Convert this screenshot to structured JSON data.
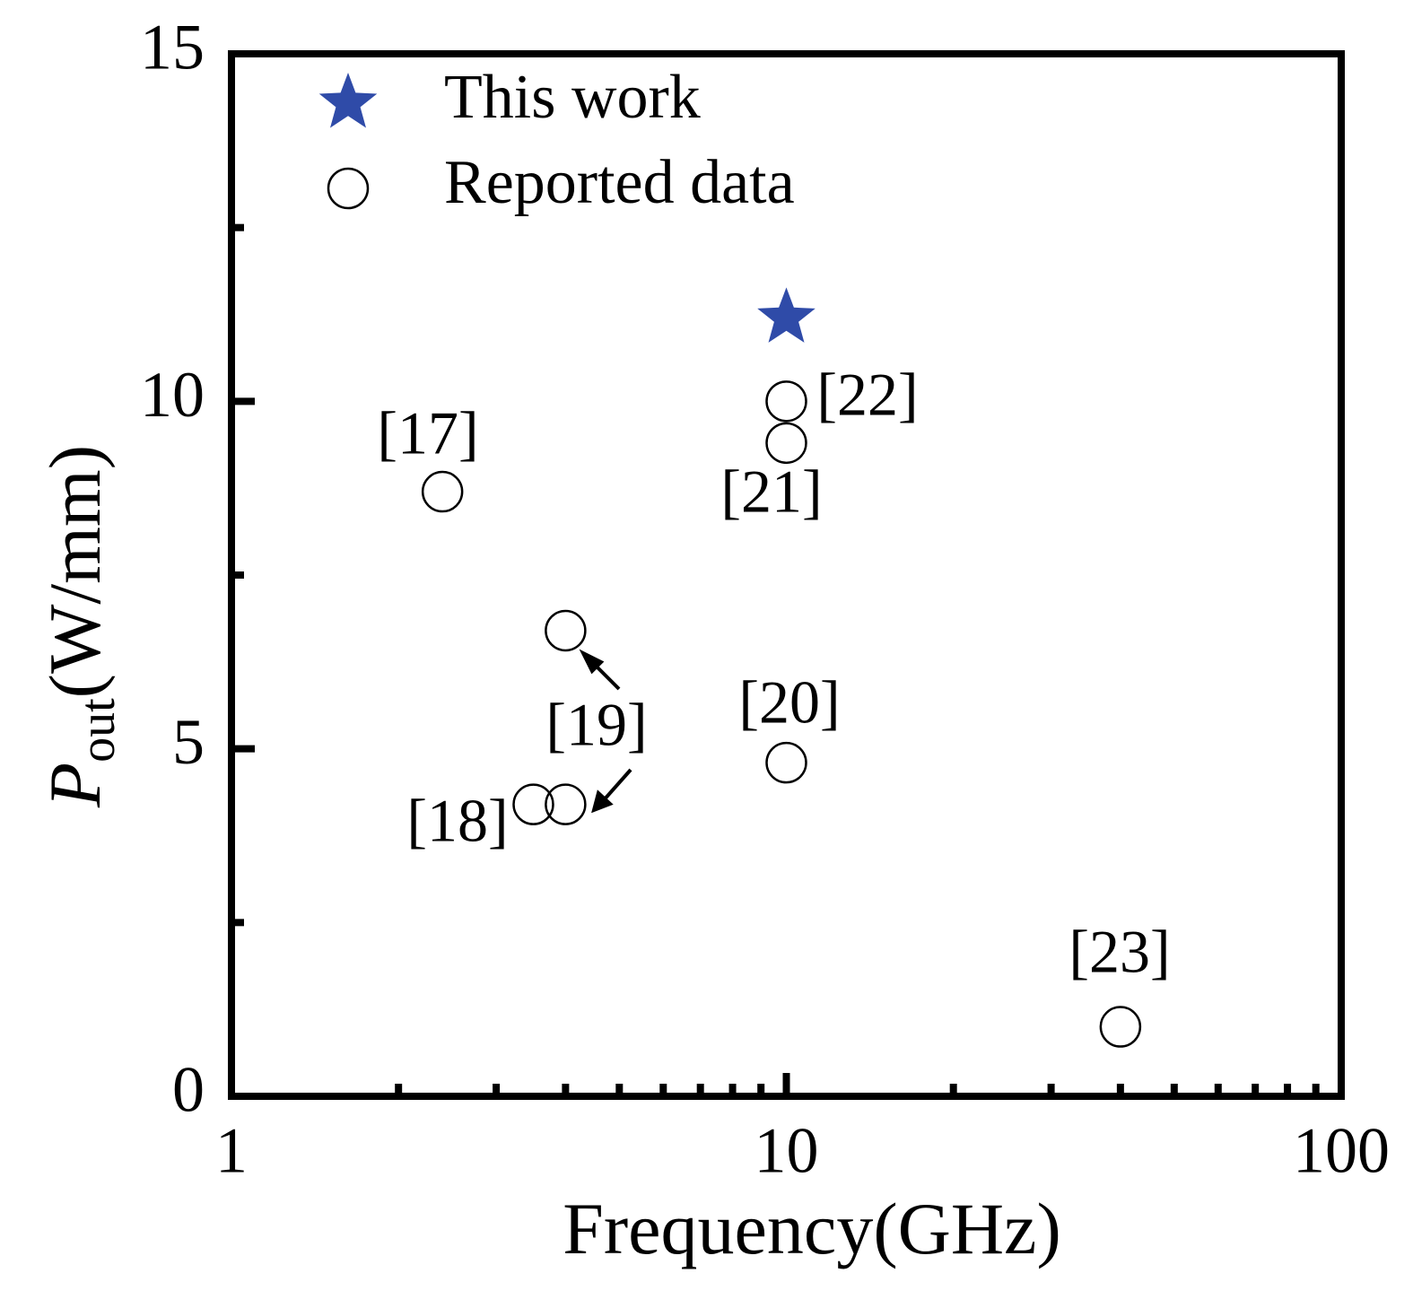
{
  "chart_data": {
    "type": "scatter",
    "x_label": "Frequency(GHz)",
    "y_label": {
      "main": "P",
      "sub": "out",
      "unit": "(W/mm)"
    },
    "xscale": "log",
    "xlim": [
      1,
      100
    ],
    "xticks": [
      1,
      10,
      100
    ],
    "xminor": [
      2,
      3,
      4,
      5,
      6,
      7,
      8,
      9,
      20,
      30,
      40,
      50,
      60,
      70,
      80,
      90
    ],
    "ylim": [
      0,
      15
    ],
    "yticks": [
      0,
      5,
      10,
      15
    ],
    "yminor": [
      2.5,
      7.5,
      12.5
    ],
    "legend": "top-left",
    "series": [
      {
        "name": "This work",
        "marker": "star",
        "color": "#2f4ba8",
        "x": [
          10
        ],
        "values": [
          11.2
        ]
      },
      {
        "name": "Reported data",
        "marker": "open-circle",
        "color": "#000000",
        "x": [
          2.4,
          3.5,
          4,
          4,
          10,
          10,
          10,
          40
        ],
        "values": [
          8.7,
          4.2,
          4.2,
          6.7,
          4.8,
          9.4,
          10.0,
          1.0
        ]
      }
    ],
    "annotations": [
      "[17]",
      "[18]",
      "[19]",
      "[20]",
      "[21]",
      "[22]",
      "[23]"
    ]
  }
}
